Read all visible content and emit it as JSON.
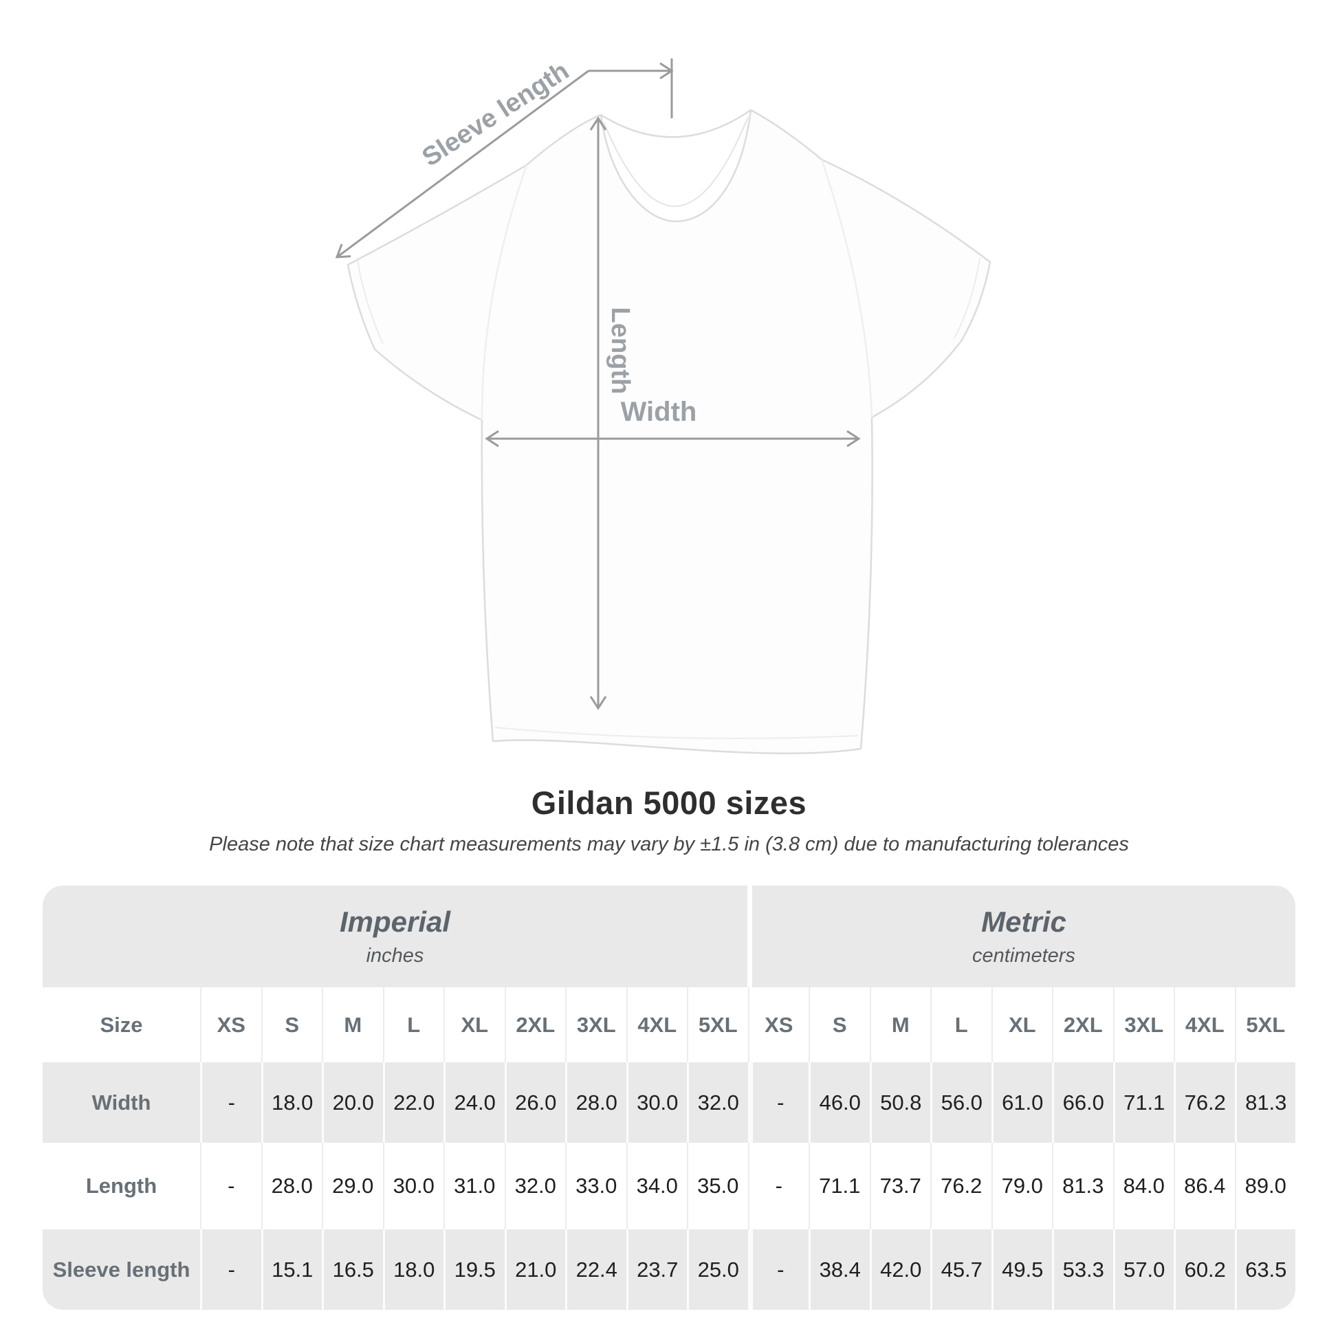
{
  "diagram": {
    "labels": {
      "sleeve_length": "Sleeve length",
      "length": "Length",
      "width": "Width"
    },
    "line_color": "#9b9b9b",
    "label_color": "#9ba1a6",
    "shirt_color": "#fdfdfd"
  },
  "chart_data": {
    "type": "table",
    "title": "Gildan 5000 sizes",
    "note": "Please note that size chart measurements may vary by ±1.5 in (3.8 cm) due to manufacturing tolerances",
    "size_header_label": "Size",
    "sizes": [
      "XS",
      "S",
      "M",
      "L",
      "XL",
      "2XL",
      "3XL",
      "4XL",
      "5XL"
    ],
    "column_groups": [
      {
        "label": "Imperial",
        "unit_label": "inches"
      },
      {
        "label": "Metric",
        "unit_label": "centimeters"
      }
    ],
    "rows": [
      {
        "label": "Width",
        "imperial": [
          "-",
          "18.0",
          "20.0",
          "22.0",
          "24.0",
          "26.0",
          "28.0",
          "30.0",
          "32.0"
        ],
        "metric": [
          "-",
          "46.0",
          "50.8",
          "56.0",
          "61.0",
          "66.0",
          "71.1",
          "76.2",
          "81.3"
        ]
      },
      {
        "label": "Length",
        "imperial": [
          "-",
          "28.0",
          "29.0",
          "30.0",
          "31.0",
          "32.0",
          "33.0",
          "34.0",
          "35.0"
        ],
        "metric": [
          "-",
          "71.1",
          "73.7",
          "76.2",
          "79.0",
          "81.3",
          "84.0",
          "86.4",
          "89.0"
        ]
      },
      {
        "label": "Sleeve length",
        "imperial": [
          "-",
          "15.1",
          "16.5",
          "18.0",
          "19.5",
          "21.0",
          "22.4",
          "23.7",
          "25.0"
        ],
        "metric": [
          "-",
          "38.4",
          "42.0",
          "45.7",
          "49.5",
          "53.3",
          "57.0",
          "60.2",
          "63.5"
        ]
      }
    ]
  },
  "colors": {
    "table_band_gray": "#e9e9e9",
    "group_label": "#5d646b",
    "header_label": "#687077",
    "data_text": "#1f1f1f",
    "title_text": "#2e2e2e"
  }
}
